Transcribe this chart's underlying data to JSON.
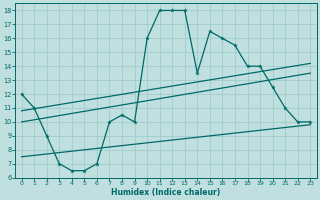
{
  "xlabel": "Humidex (Indice chaleur)",
  "bg_color": "#c0e0e0",
  "grid_color": "#a0cccc",
  "line_color": "#006868",
  "xlim": [
    -0.5,
    23.5
  ],
  "ylim": [
    6,
    18.5
  ],
  "xticks": [
    0,
    1,
    2,
    3,
    4,
    5,
    6,
    7,
    8,
    9,
    10,
    11,
    12,
    13,
    14,
    15,
    16,
    17,
    18,
    19,
    20,
    21,
    22,
    23
  ],
  "yticks": [
    6,
    7,
    8,
    9,
    10,
    11,
    12,
    13,
    14,
    15,
    16,
    17,
    18
  ],
  "series1_x": [
    0,
    1,
    2,
    3,
    4,
    5,
    6,
    7,
    8,
    9,
    10,
    11,
    12,
    13,
    14,
    15,
    16,
    17,
    18,
    19,
    20,
    21,
    22,
    23
  ],
  "series1_y": [
    12,
    11,
    9,
    7,
    6.5,
    6.5,
    7,
    10,
    10.5,
    10,
    16,
    18,
    18,
    18,
    13.5,
    16.5,
    16,
    15.5,
    14,
    14,
    12.5,
    11,
    10,
    10
  ],
  "series2_x": [
    0,
    23
  ],
  "series2_y": [
    10.0,
    13.5
  ],
  "series3_x": [
    0,
    23
  ],
  "series3_y": [
    10.8,
    14.2
  ],
  "series4_x": [
    0,
    23
  ],
  "series4_y": [
    7.5,
    9.8
  ]
}
